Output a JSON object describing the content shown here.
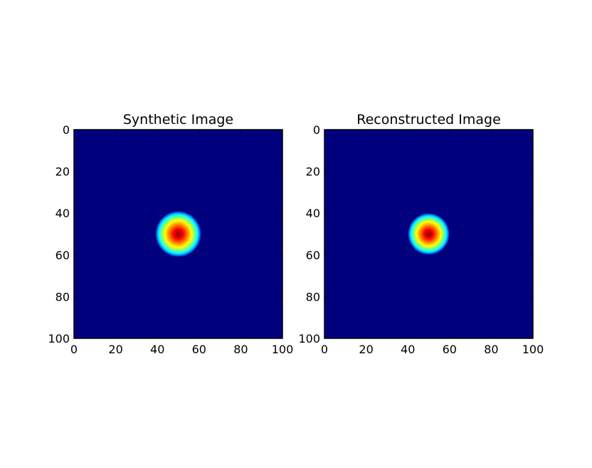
{
  "chart_data": [
    {
      "type": "heatmap",
      "title": "Synthetic Image",
      "xlabel": "",
      "ylabel": "",
      "xlim": [
        0,
        100
      ],
      "ylim": [
        100,
        0
      ],
      "xticks": [
        "0",
        "20",
        "40",
        "60",
        "80",
        "100"
      ],
      "yticks": [
        "0",
        "20",
        "40",
        "60",
        "80",
        "100"
      ],
      "colormap": "jet",
      "background_value_color": "#00007f",
      "blob": {
        "center_x": 50,
        "center_y": 50,
        "radius": 11
      },
      "grid": false
    },
    {
      "type": "heatmap",
      "title": "Reconstructed Image",
      "xlabel": "",
      "ylabel": "",
      "xlim": [
        0,
        100
      ],
      "ylim": [
        100,
        0
      ],
      "xticks": [
        "0",
        "20",
        "40",
        "60",
        "80",
        "100"
      ],
      "yticks": [
        "0",
        "20",
        "40",
        "60",
        "80",
        "100"
      ],
      "colormap": "jet",
      "background_value_color": "#00007f",
      "blob": {
        "center_x": 50,
        "center_y": 50,
        "radius": 10
      },
      "grid": false
    }
  ]
}
